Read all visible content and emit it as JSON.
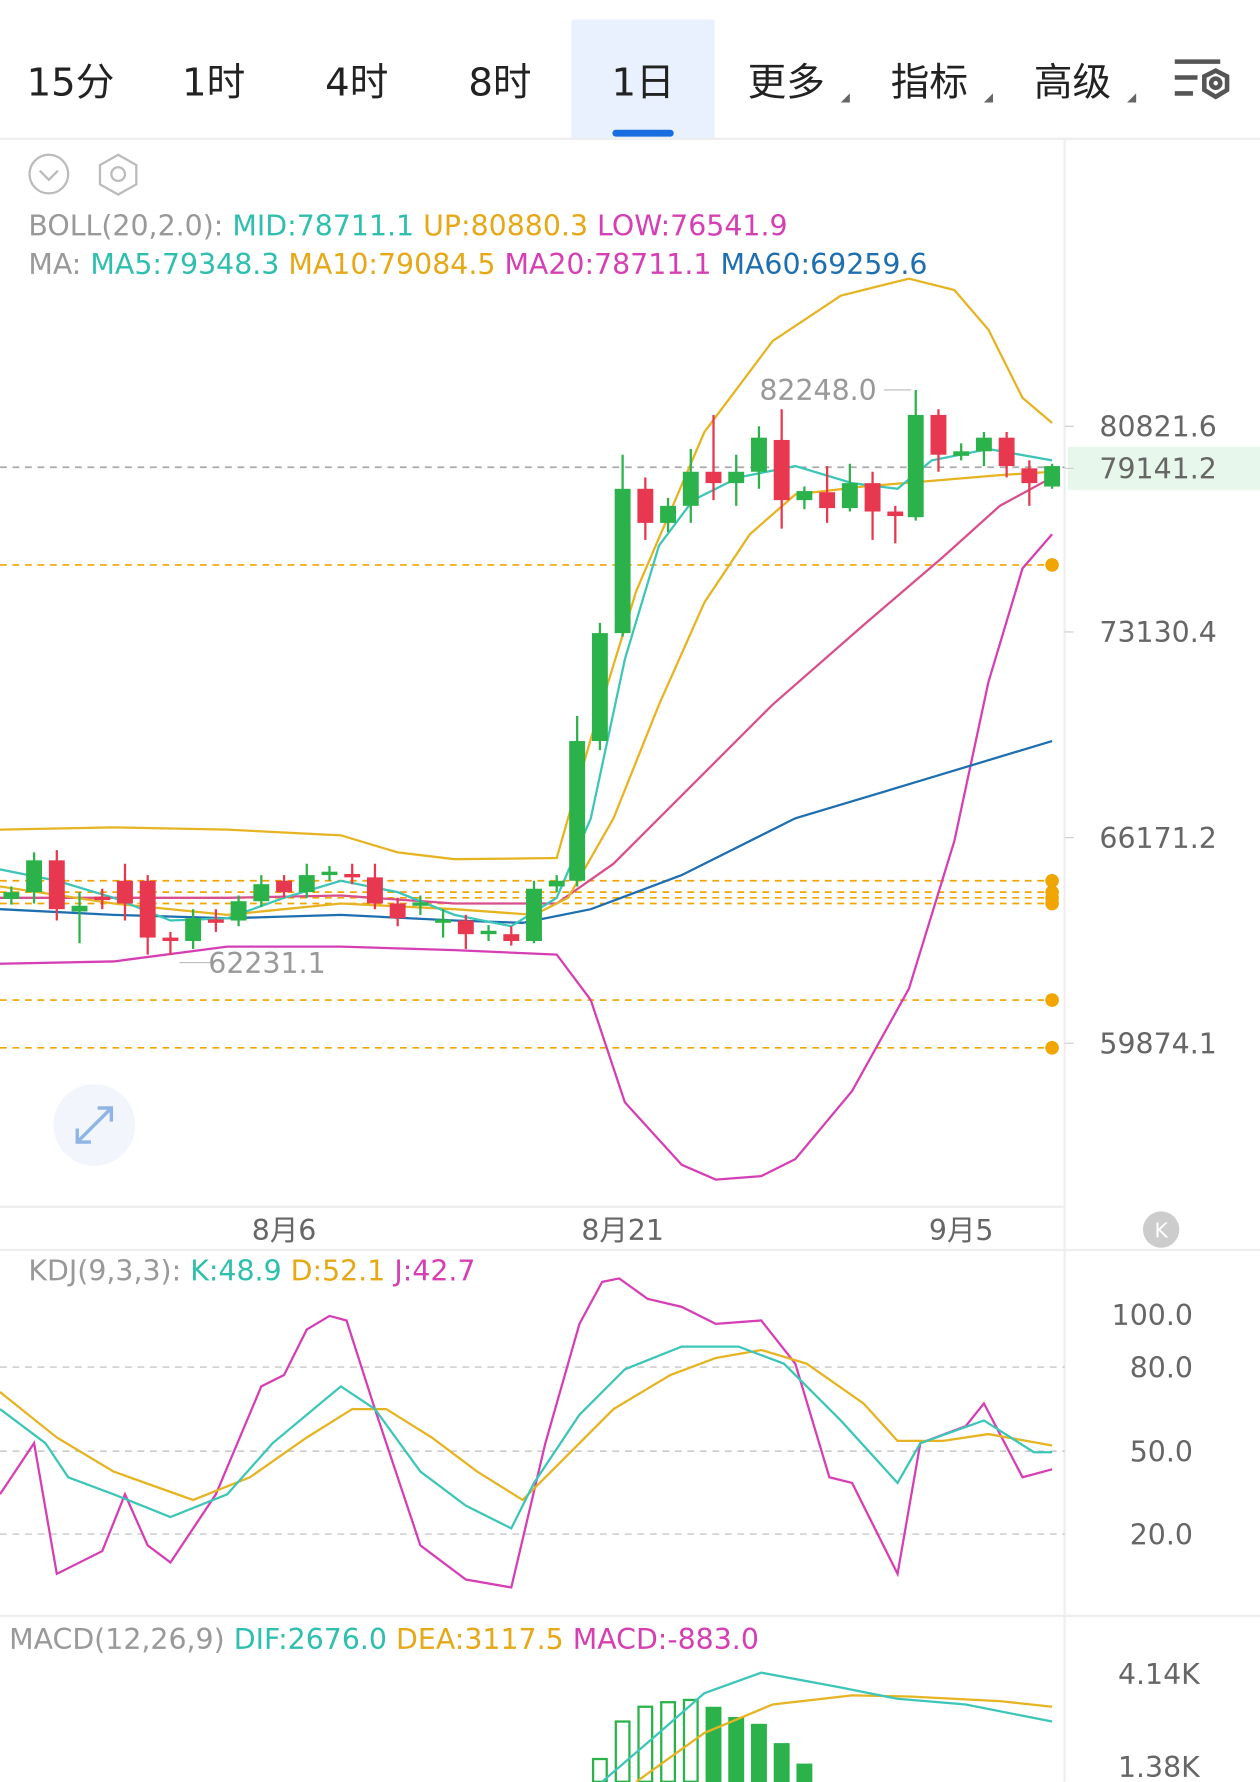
{
  "tabs": [
    "15分",
    "1时",
    "4时",
    "8时",
    "1日",
    "更多",
    "指标",
    "高级"
  ],
  "boll": {
    "label": "BOLL(20,2.0):",
    "mid": "MID:78711.1",
    "up": "UP:80880.3",
    "low": "LOW:76541.9"
  },
  "ma": {
    "label": "MA:",
    "ma5": "MA5:79348.3",
    "ma10": "MA10:79084.5",
    "ma20": "MA20:78711.1",
    "ma60": "MA60:69259.6"
  },
  "price_axis": [
    "80821.6",
    "79141.2",
    "73130.4",
    "66171.2",
    "59874.1"
  ],
  "high_label": "82248.0",
  "low_label": "62231.1",
  "dates": [
    "8月6",
    "8月21",
    "9月5"
  ],
  "kdj": {
    "label": "KDJ(9,3,3):",
    "k": "K:48.9",
    "d": "D:52.1",
    "j": "J:42.7",
    "axis": [
      "100.0",
      "80.0",
      "50.0",
      "20.0"
    ]
  },
  "macd": {
    "label": "MACD(12,26,9)",
    "dif": "DIF:2676.0",
    "dea": "DEA:3117.5",
    "macd": "MACD:-883.0",
    "axis": [
      "4.14K",
      "1.38K"
    ]
  }
}
